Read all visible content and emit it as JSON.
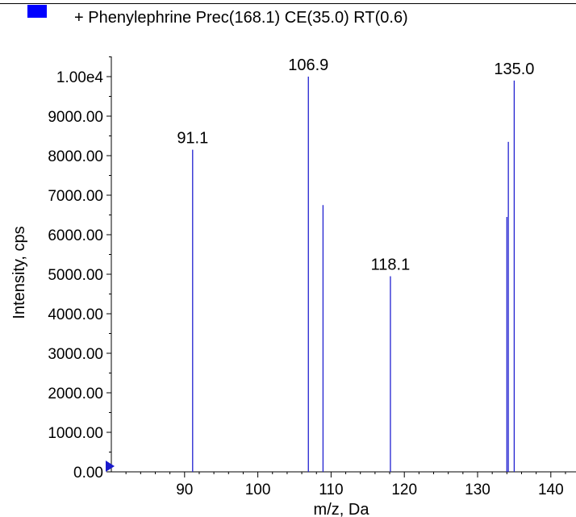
{
  "legend": {
    "label": "+ Phenylephrine Prec(168.1) CE(35.0) RT(0.6)",
    "swatch_color": "#0000ff"
  },
  "chart_data": {
    "type": "bar",
    "xlabel": "m/z, Da",
    "ylabel": "Intensity, cps",
    "xlim": [
      80,
      144
    ],
    "ylim": [
      0,
      10600
    ],
    "x_ticks": [
      {
        "value": 90,
        "label": "90"
      },
      {
        "value": 100,
        "label": "100"
      },
      {
        "value": 110,
        "label": "110"
      },
      {
        "value": 120,
        "label": "120"
      },
      {
        "value": 130,
        "label": "130"
      },
      {
        "value": 140,
        "label": "140"
      }
    ],
    "y_ticks": [
      {
        "value": 0,
        "label": "0.00"
      },
      {
        "value": 1000,
        "label": "1000.00"
      },
      {
        "value": 2000,
        "label": "2000.00"
      },
      {
        "value": 3000,
        "label": "3000.00"
      },
      {
        "value": 4000,
        "label": "4000.00"
      },
      {
        "value": 5000,
        "label": "5000.00"
      },
      {
        "value": 6000,
        "label": "6000.00"
      },
      {
        "value": 7000,
        "label": "7000.00"
      },
      {
        "value": 8000,
        "label": "8000.00"
      },
      {
        "value": 9000,
        "label": "9000.00"
      },
      {
        "value": 10000,
        "label": "1.00e4"
      }
    ],
    "peaks": [
      {
        "mz": 91.1,
        "intensity": 8150,
        "label": "91.1"
      },
      {
        "mz": 106.9,
        "intensity": 10000,
        "label": "106.9"
      },
      {
        "mz": 108.9,
        "intensity": 6750,
        "label": ""
      },
      {
        "mz": 118.1,
        "intensity": 4950,
        "label": "118.1"
      },
      {
        "mz": 134.0,
        "intensity": 6450,
        "label": ""
      },
      {
        "mz": 134.2,
        "intensity": 8350,
        "label": ""
      },
      {
        "mz": 135.0,
        "intensity": 9900,
        "label": "135.0"
      }
    ],
    "peak_color": "#2020d0",
    "grid": false,
    "legend_position": "top-left"
  }
}
